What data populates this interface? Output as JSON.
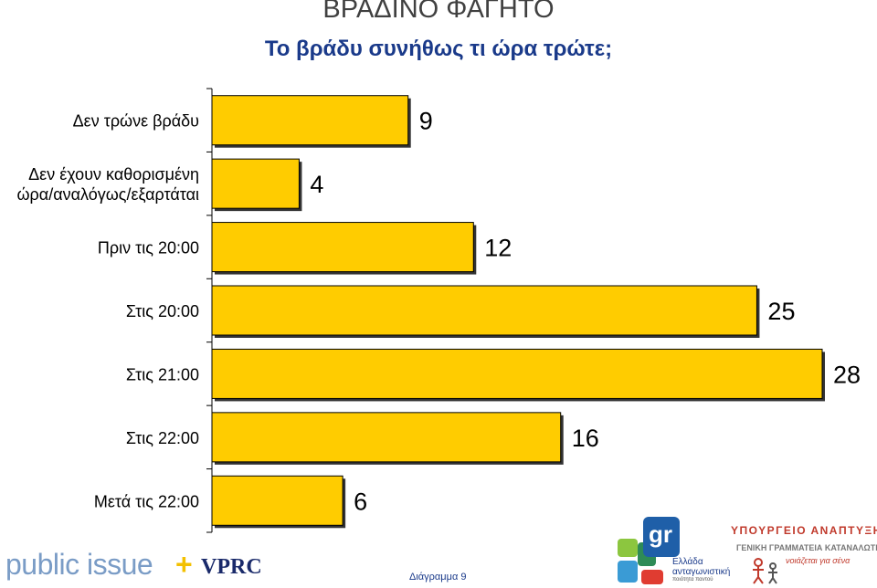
{
  "header": {
    "title": "ΒΡΑΔΙΝΟ ΦΑΓΗΤΟ",
    "subtitle": "Το βράδυ συνήθως τι ώρα τρώτε;"
  },
  "chart_data": {
    "type": "bar",
    "orientation": "horizontal",
    "categories": [
      [
        "Δεν τρώνε βράδυ"
      ],
      [
        "Δεν έχουν καθορισμένη",
        "ώρα/αναλόγως/εξαρτάται"
      ],
      [
        "Πριν τις 20:00"
      ],
      [
        "Στις 20:00"
      ],
      [
        "Στις 21:00"
      ],
      [
        "Στις 22:00"
      ],
      [
        "Μετά τις 22:00"
      ]
    ],
    "values": [
      9,
      4,
      12,
      25,
      28,
      16,
      6
    ],
    "data_labels": [
      "9",
      "4",
      "12",
      "25",
      "28",
      "16",
      "6"
    ],
    "bar_color": "#FFCC00",
    "xlim": [
      0,
      28
    ],
    "grid": false,
    "legend": "none"
  },
  "footer": {
    "brand": "public issue",
    "plus": "+",
    "partner": "VPRC",
    "caption": "Διάγραμμα 9",
    "logo_text_1": "Ελλάδα",
    "logo_text_2": "ανταγωνιστική",
    "logo_text_3": "ποιότητα παντού",
    "ministry_1": "ΥΠΟΥΡΓΕΙΟ ΑΝΑΠΤΥΞΗΣ",
    "ministry_2": "ΓΕΝΙΚΗ ΓΡΑΜΜΑΤΕΙΑ ΚΑΤΑΝΑΛΩΤΗ",
    "ministry_3": "νοιάζεται για σένα"
  }
}
